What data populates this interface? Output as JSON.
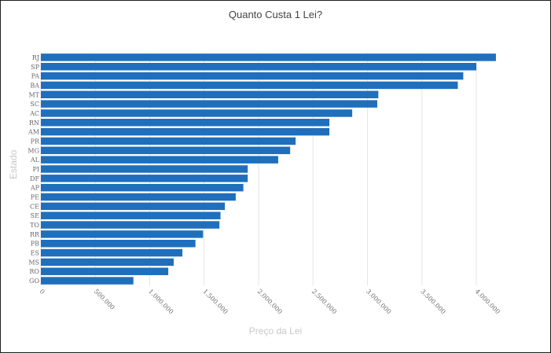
{
  "chart_data": {
    "type": "bar",
    "orientation": "horizontal",
    "title": "Quanto Custa 1 Lei?",
    "xlabel": "Preço da Lei",
    "ylabel": "Estado",
    "xlim": [
      0,
      4200000
    ],
    "x_ticks": [
      {
        "value": 0,
        "label": "0"
      },
      {
        "value": 500000,
        "label": "500.000"
      },
      {
        "value": 1000000,
        "label": "1.000.000"
      },
      {
        "value": 1500000,
        "label": "1.500.000"
      },
      {
        "value": 2000000,
        "label": "2.000.000"
      },
      {
        "value": 2500000,
        "label": "2.500.000"
      },
      {
        "value": 3000000,
        "label": "3.000.000"
      },
      {
        "value": 3500000,
        "label": "3.500.000"
      },
      {
        "value": 4000000,
        "label": "4.000.000"
      }
    ],
    "categories": [
      "RJ",
      "SP",
      "PA",
      "BA",
      "MT",
      "SC",
      "AC",
      "RN",
      "AM",
      "PR",
      "MG",
      "AL",
      "PI",
      "DF",
      "AP",
      "PE",
      "CE",
      "SE",
      "TO",
      "RR",
      "PB",
      "ES",
      "MS",
      "RO",
      "GO"
    ],
    "values": [
      4180000,
      4000000,
      3880000,
      3830000,
      3100000,
      3090000,
      2860000,
      2650000,
      2650000,
      2340000,
      2290000,
      2180000,
      1900000,
      1900000,
      1860000,
      1790000,
      1690000,
      1650000,
      1640000,
      1490000,
      1420000,
      1300000,
      1220000,
      1170000,
      850000
    ],
    "bar_color": "#1f6fbd",
    "grid": true,
    "legend": "none"
  }
}
